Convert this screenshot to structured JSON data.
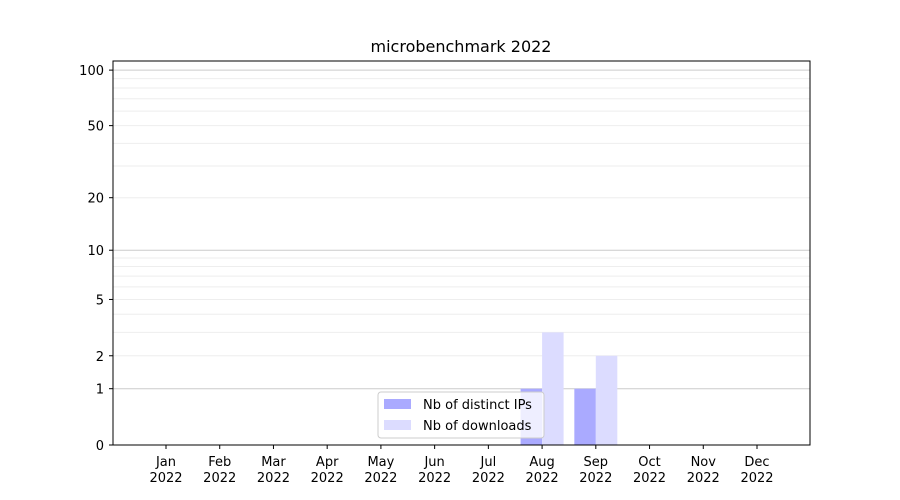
{
  "chart_data": {
    "type": "bar",
    "title": "microbenchmark 2022",
    "xlabel": "",
    "ylabel": "",
    "yscale": "log(1+y)",
    "ylim": [
      0,
      112
    ],
    "yticks": [
      0,
      1,
      2,
      5,
      10,
      20,
      50,
      100
    ],
    "grid": true,
    "legend_position": "lower-center",
    "categories": [
      "Jan\n2022",
      "Feb\n2022",
      "Mar\n2022",
      "Apr\n2022",
      "May\n2022",
      "Jun\n2022",
      "Jul\n2022",
      "Aug\n2022",
      "Sep\n2022",
      "Oct\n2022",
      "Nov\n2022",
      "Dec\n2022"
    ],
    "series": [
      {
        "name": "Nb of distinct IPs",
        "color": "#aaaaff",
        "values": [
          0,
          0,
          0,
          0,
          0,
          0,
          0,
          1,
          1,
          0,
          0,
          0
        ]
      },
      {
        "name": "Nb of downloads",
        "color": "#dcdcff",
        "values": [
          0,
          0,
          0,
          0,
          0,
          0,
          0,
          3,
          2,
          0,
          0,
          0
        ]
      }
    ]
  }
}
